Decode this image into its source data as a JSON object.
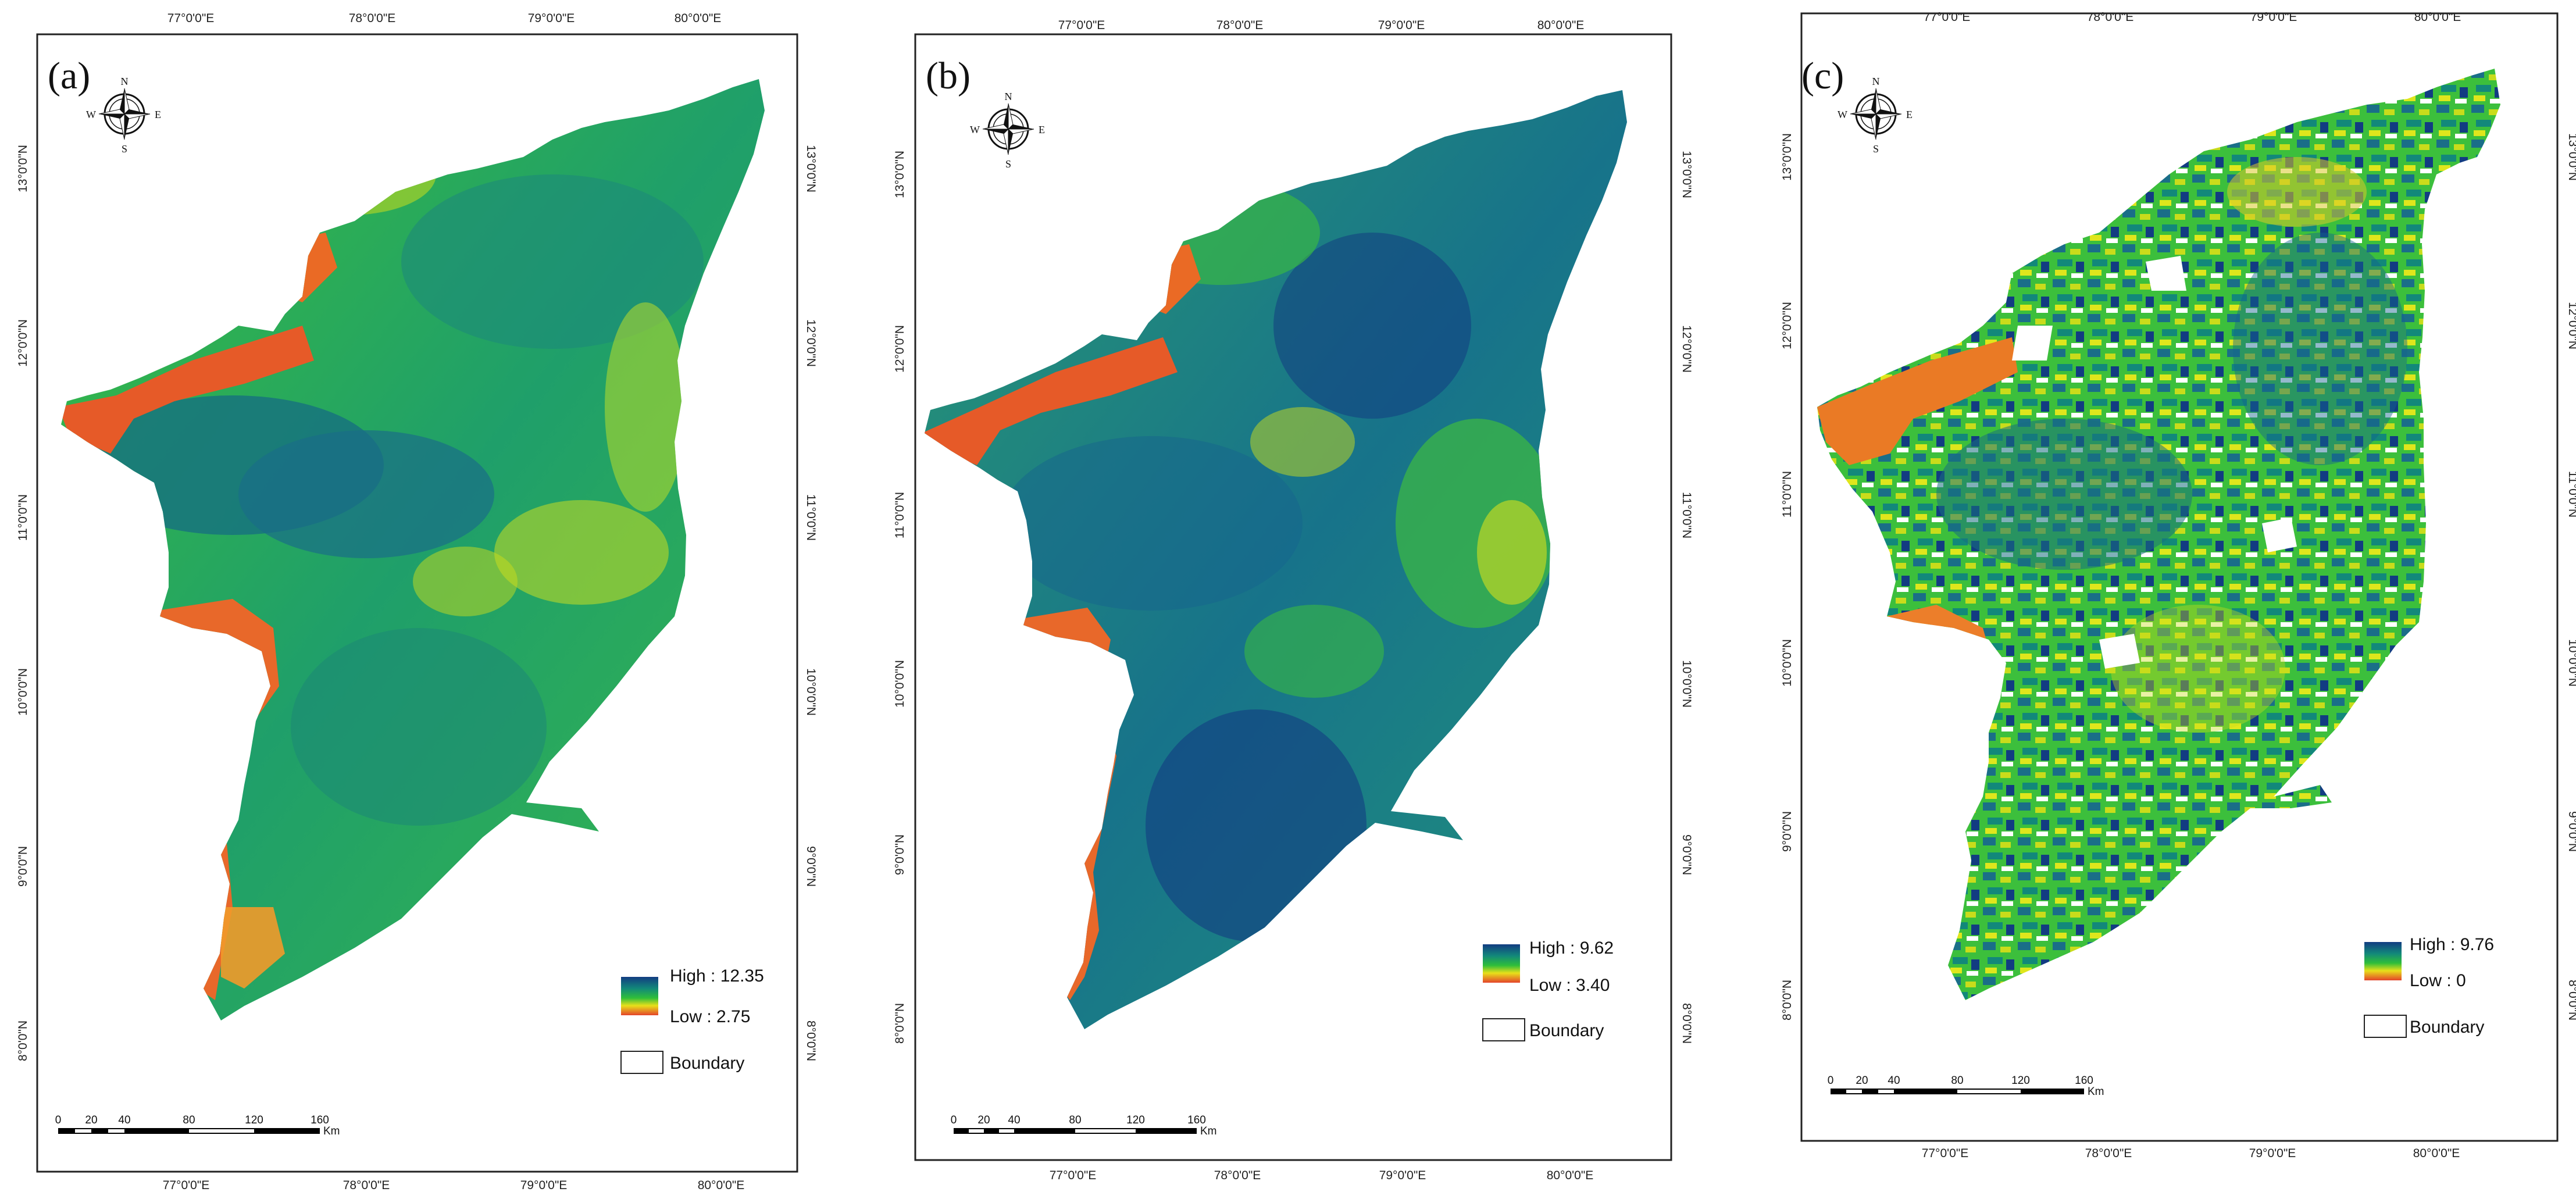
{
  "colors": {
    "high": "#123c82",
    "upper": "#12887a",
    "mid": "#2fbe3a",
    "lower": "#c9dc1b",
    "low": "#f08a24",
    "red": "#e44a2a",
    "frame": "#222222"
  },
  "compass": {
    "n": "N",
    "s": "S",
    "e": "E",
    "w": "W"
  },
  "axes": {
    "lon_ticks": [
      "77°0'0\"E",
      "78°0'0\"E",
      "79°0'0\"E",
      "80°0'0\"E"
    ],
    "lat_ticks": [
      "13°0'0\"N",
      "12°0'0\"N",
      "11°0'0\"N",
      "10°0'0\"N",
      "9°0'0\"N",
      "8°0'0\"N"
    ]
  },
  "scale_bar": {
    "ticks": [
      "0",
      "20",
      "40",
      "80",
      "120",
      "160"
    ],
    "unit": "Km"
  },
  "panels": [
    {
      "label": "(a)",
      "legend_high": "High : 12.35",
      "legend_low": "Low : 2.75",
      "boundary": "Boundary"
    },
    {
      "label": "(b)",
      "legend_high": "High : 9.62",
      "legend_low": "Low : 3.40",
      "boundary": "Boundary"
    },
    {
      "label": "(c)",
      "legend_high": "High : 9.76",
      "legend_low": "Low : 0",
      "boundary": "Boundary"
    }
  ]
}
